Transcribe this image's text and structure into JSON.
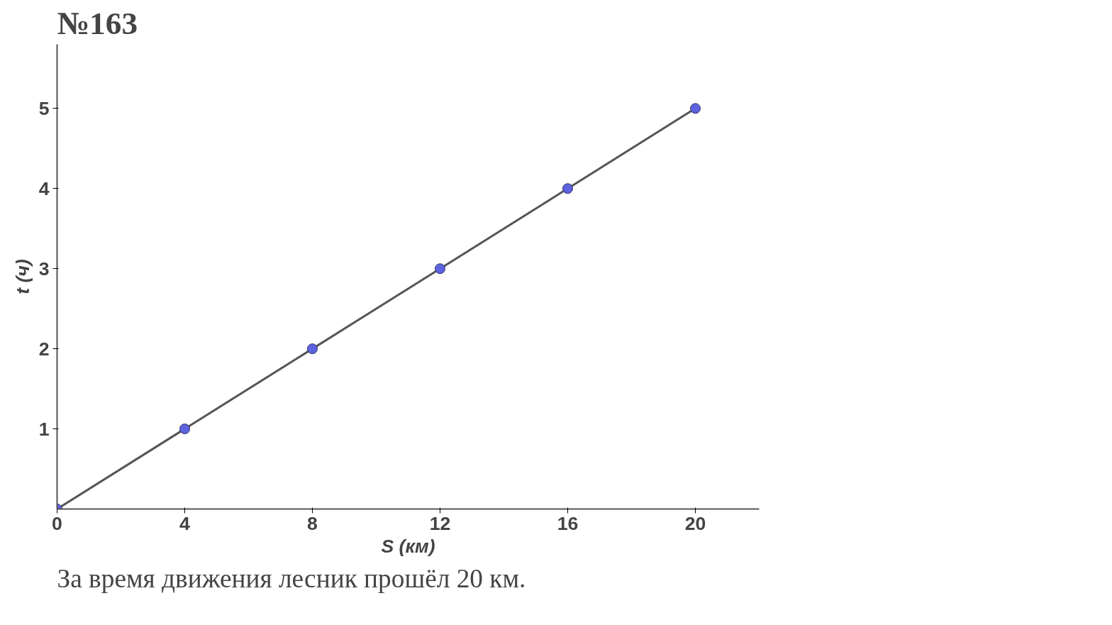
{
  "chart_data": {
    "type": "line",
    "title": "№163",
    "xlabel": "S (км)",
    "ylabel": "t (ч)",
    "x": [
      0,
      4,
      8,
      12,
      16,
      20
    ],
    "series": [
      {
        "color": "#5c63e0",
        "values": [
          0,
          1,
          2,
          3,
          4,
          5
        ]
      }
    ],
    "xlim": [
      0,
      22
    ],
    "ylim": [
      0,
      5.8
    ],
    "xticks": [
      0,
      4,
      8,
      12,
      16,
      20
    ],
    "yticks": [
      1,
      2,
      3,
      4,
      5
    ],
    "marker": "circle",
    "line_style": "solid",
    "grid": false,
    "annotations": [
      "За время движения лесник прошёл 20 км."
    ]
  }
}
